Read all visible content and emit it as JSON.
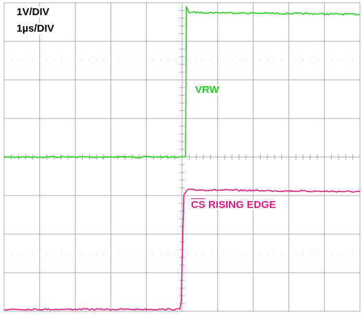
{
  "scale": {
    "volts_per_div": "1V/DIV",
    "time_per_div": "1µs/DIV"
  },
  "colors": {
    "vrw": "#22d11e",
    "cs": "#e0197d",
    "grid": "#a8a8a8",
    "background": "#ffffff"
  },
  "labels": {
    "vrw": "VRW",
    "cs_name": "CS",
    "cs_rest": " RISING EDGE"
  },
  "chart_data": {
    "type": "line",
    "grid": {
      "divisions_x": 10,
      "divisions_y": 8
    },
    "xlabel": "",
    "ylabel": "",
    "xlim": [
      0,
      10
    ],
    "ylim": [
      0,
      8
    ],
    "series": [
      {
        "name": "VRW",
        "color_key": "vrw",
        "x": [
          0,
          5.1,
          5.12,
          5.2,
          10
        ],
        "y": [
          4.0,
          4.0,
          7.9,
          7.75,
          7.7
        ]
      },
      {
        "name": "CS RISING EDGE",
        "color_key": "cs",
        "x": [
          0,
          4.94,
          4.98,
          5.0,
          5.05,
          5.15,
          10
        ],
        "y": [
          0.05,
          0.05,
          0.3,
          1.2,
          3.0,
          3.15,
          3.1
        ]
      }
    ]
  }
}
